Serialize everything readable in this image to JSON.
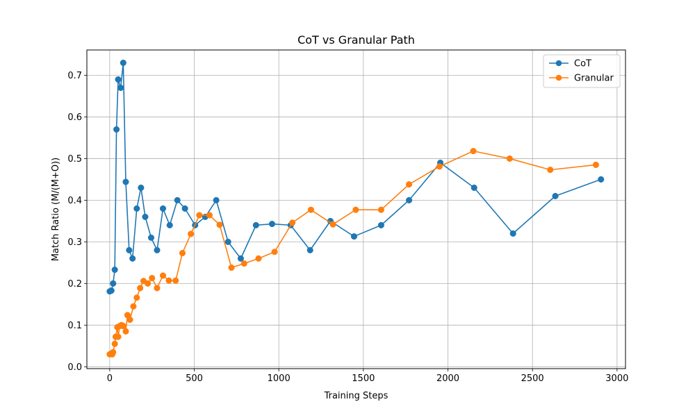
{
  "chart_data": {
    "type": "line",
    "title": "CoT vs Granular Path",
    "xlabel": "Training Steps",
    "ylabel": "Match Ratio (M/(M+O))",
    "xlim": [
      -135,
      3050
    ],
    "ylim": [
      -0.0045,
      0.7608
    ],
    "xticks": [
      0,
      500,
      1000,
      1500,
      2000,
      2500,
      3000
    ],
    "yticks": [
      0.0,
      0.1,
      0.2,
      0.3,
      0.4,
      0.5,
      0.6,
      0.7
    ],
    "xtick_labels": [
      "0",
      "500",
      "1000",
      "1500",
      "2000",
      "2500",
      "3000"
    ],
    "ytick_labels": [
      "0.0",
      "0.1",
      "0.2",
      "0.3",
      "0.4",
      "0.5",
      "0.6",
      "0.7"
    ],
    "grid": true,
    "legend_position": "top-right",
    "series": [
      {
        "name": "CoT",
        "color": "#1f77b4",
        "marker": "circle",
        "x": [
          0,
          10,
          20,
          30,
          40,
          50,
          65,
          80,
          95,
          115,
          135,
          160,
          185,
          210,
          245,
          280,
          315,
          355,
          400,
          445,
          505,
          565,
          630,
          700,
          775,
          865,
          960,
          1070,
          1185,
          1305,
          1445,
          1605,
          1770,
          1955,
          2155,
          2385,
          2635,
          2905
        ],
        "y": [
          0.181,
          0.183,
          0.2,
          0.233,
          0.57,
          0.69,
          0.67,
          0.73,
          0.444,
          0.28,
          0.26,
          0.38,
          0.43,
          0.36,
          0.31,
          0.28,
          0.38,
          0.34,
          0.4,
          0.38,
          0.34,
          0.36,
          0.4,
          0.3,
          0.26,
          0.34,
          0.343,
          0.34,
          0.28,
          0.35,
          0.313,
          0.34,
          0.4,
          0.49,
          0.43,
          0.32,
          0.41,
          0.45
        ]
      },
      {
        "name": "Granular",
        "color": "#ff7f0e",
        "marker": "circle",
        "x": [
          0,
          10,
          15,
          20,
          30,
          35,
          45,
          50,
          60,
          70,
          80,
          95,
          105,
          120,
          140,
          160,
          180,
          200,
          225,
          250,
          280,
          315,
          350,
          390,
          430,
          480,
          530,
          590,
          650,
          720,
          795,
          880,
          975,
          1080,
          1190,
          1320,
          1455,
          1605,
          1770,
          1950,
          2150,
          2365,
          2605,
          2875
        ],
        "y": [
          0.03,
          0.032,
          0.03,
          0.035,
          0.055,
          0.072,
          0.095,
          0.072,
          0.098,
          0.1,
          0.098,
          0.085,
          0.124,
          0.113,
          0.145,
          0.166,
          0.189,
          0.206,
          0.2,
          0.213,
          0.189,
          0.219,
          0.207,
          0.207,
          0.273,
          0.319,
          0.364,
          0.364,
          0.341,
          0.238,
          0.248,
          0.26,
          0.276,
          0.346,
          0.377,
          0.342,
          0.377,
          0.377,
          0.438,
          0.481,
          0.518,
          0.5,
          0.473,
          0.485
        ]
      }
    ]
  }
}
